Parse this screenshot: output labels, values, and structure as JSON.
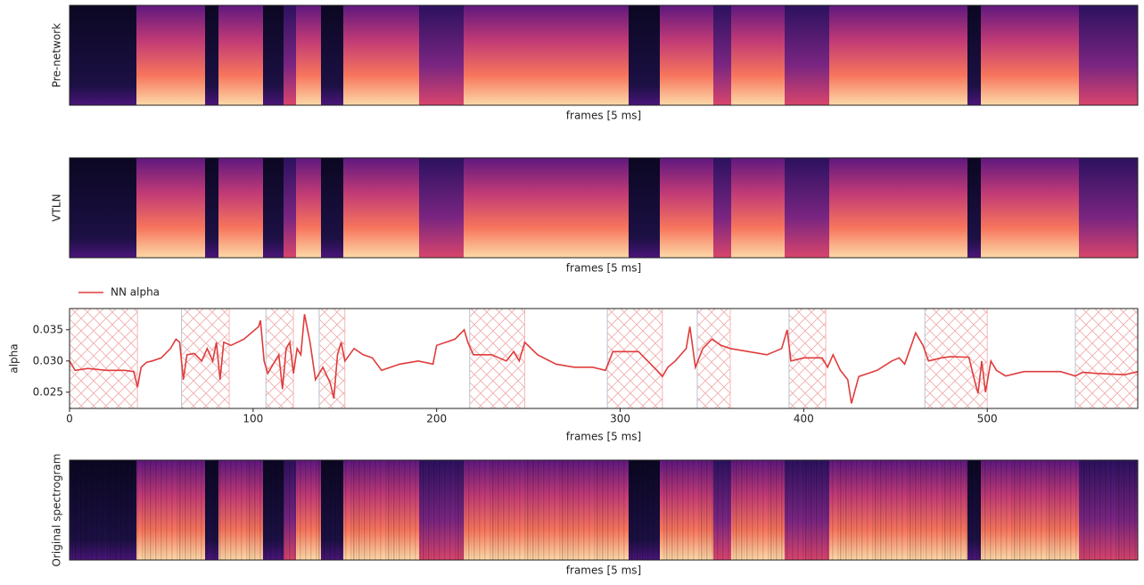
{
  "chart_data": [
    {
      "type": "heatmap",
      "ylabel": "Pre-network",
      "xlabel": "frames [5 ms]"
    },
    {
      "type": "heatmap",
      "ylabel": "VTLN",
      "xlabel": "frames [5 ms]"
    },
    {
      "type": "line",
      "ylabel": "alpha",
      "xlabel": "frames [5 ms]",
      "xlim": [
        0,
        582
      ],
      "ylim": [
        0.0224,
        0.0384
      ],
      "xticks": [
        0,
        100,
        200,
        300,
        400,
        500
      ],
      "yticks": [
        0.025,
        {
          "value": 0.03,
          "label": "0.030"
        },
        0.035
      ],
      "legend": "upper left",
      "spans": [
        [
          0,
          37
        ],
        [
          61,
          87
        ],
        [
          107,
          122
        ],
        [
          136,
          150
        ],
        [
          218,
          248
        ],
        [
          293,
          323
        ],
        [
          342,
          360
        ],
        [
          392,
          412
        ],
        [
          466,
          500
        ],
        [
          548,
          582
        ]
      ],
      "x": [
        0,
        3,
        10,
        20,
        30,
        35,
        37,
        39,
        42,
        45,
        50,
        55,
        58,
        60,
        62,
        64,
        68,
        72,
        75,
        78,
        80,
        82,
        84,
        88,
        95,
        103,
        104,
        106,
        108,
        112,
        114,
        116,
        118,
        120,
        122,
        124,
        126,
        128,
        131,
        134,
        138,
        142,
        144,
        146,
        148,
        150,
        155,
        160,
        165,
        170,
        175,
        180,
        190,
        198,
        200,
        210,
        215,
        217,
        220,
        230,
        238,
        242,
        245,
        248,
        255,
        265,
        275,
        285,
        292,
        296,
        310,
        315,
        320,
        323,
        326,
        330,
        336,
        338,
        341,
        345,
        350,
        355,
        360,
        370,
        380,
        388,
        391,
        393,
        400,
        410,
        413,
        416,
        420,
        424,
        426,
        430,
        440,
        448,
        452,
        455,
        458,
        461,
        465,
        468,
        475,
        480,
        490,
        493,
        495,
        497,
        499,
        502,
        505,
        510,
        520,
        540,
        548,
        552,
        560,
        575,
        582
      ],
      "series": [
        {
          "name": "NN alpha",
          "color": "#e03c3c",
          "values": [
            0.03,
            0.0285,
            0.0288,
            0.0285,
            0.0285,
            0.0283,
            0.0258,
            0.029,
            0.0298,
            0.03,
            0.0305,
            0.032,
            0.0335,
            0.033,
            0.027,
            0.031,
            0.0312,
            0.03,
            0.032,
            0.03,
            0.033,
            0.027,
            0.033,
            0.0325,
            0.0335,
            0.0355,
            0.0365,
            0.03,
            0.028,
            0.03,
            0.031,
            0.0255,
            0.032,
            0.033,
            0.028,
            0.032,
            0.031,
            0.0375,
            0.033,
            0.027,
            0.029,
            0.0265,
            0.024,
            0.031,
            0.033,
            0.03,
            0.032,
            0.031,
            0.0305,
            0.0285,
            0.029,
            0.0295,
            0.03,
            0.0295,
            0.0325,
            0.0335,
            0.035,
            0.033,
            0.031,
            0.031,
            0.03,
            0.0315,
            0.03,
            0.033,
            0.031,
            0.0295,
            0.029,
            0.029,
            0.0285,
            0.0315,
            0.0315,
            0.03,
            0.0285,
            0.0275,
            0.029,
            0.03,
            0.032,
            0.0355,
            0.029,
            0.032,
            0.0335,
            0.0325,
            0.032,
            0.0315,
            0.031,
            0.032,
            0.035,
            0.03,
            0.0305,
            0.0305,
            0.029,
            0.031,
            0.0285,
            0.027,
            0.0232,
            0.0275,
            0.0285,
            0.03,
            0.0305,
            0.0295,
            0.032,
            0.0345,
            0.0325,
            0.03,
            0.0305,
            0.0307,
            0.0306,
            0.027,
            0.0248,
            0.03,
            0.025,
            0.03,
            0.0285,
            0.0276,
            0.0283,
            0.0283,
            0.0276,
            0.0282,
            0.028,
            0.0278,
            0.0283
          ]
        }
      ]
    },
    {
      "type": "heatmap",
      "ylabel": "Original spectrogram",
      "xlabel": "frames [5 ms]"
    }
  ]
}
